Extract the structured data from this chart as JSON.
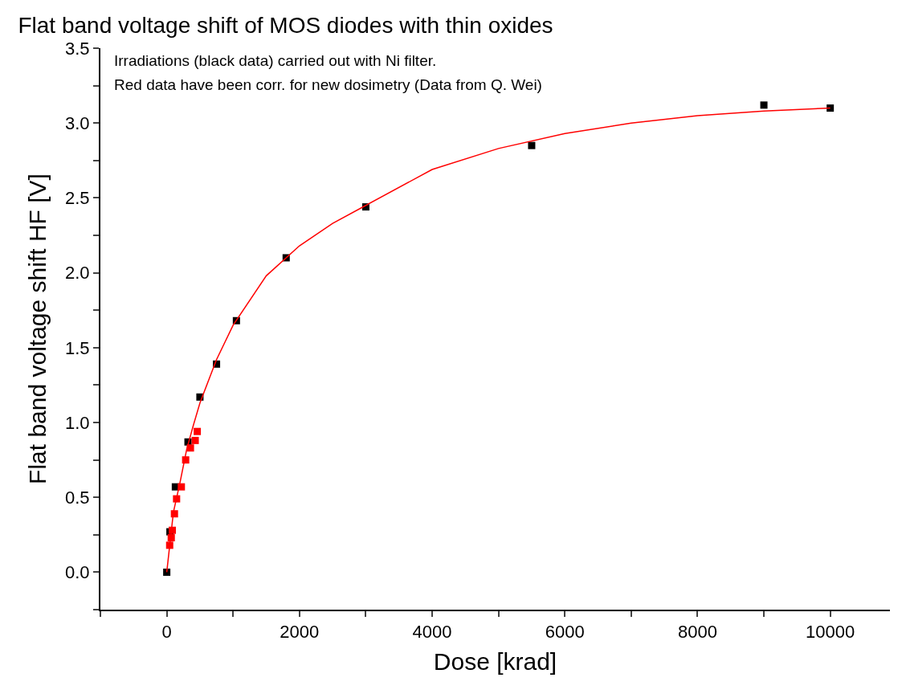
{
  "chart_data": {
    "type": "scatter",
    "title": "Flat band voltage shift of MOS diodes with thin oxides",
    "xlabel": "Dose [krad]",
    "ylabel": "Flat band voltage shift HF [V]",
    "annotations": [
      "Irradiations (black data) carried out with Ni filter.",
      "Red data have been corr. for new dosimetry (Data from Q. Wei)"
    ],
    "series": [
      {
        "color": "#000000",
        "x": [
          0,
          48,
          130,
          320,
          500,
          750,
          1050,
          1800,
          3000,
          5500,
          9000,
          10000
        ],
        "values": [
          0.0,
          0.27,
          0.57,
          0.87,
          1.17,
          1.39,
          1.68,
          2.1,
          2.44,
          2.85,
          3.12,
          3.1
        ]
      },
      {
        "color": "#ff0000",
        "x": [
          44,
          68,
          84,
          116,
          148,
          220,
          285,
          357,
          429,
          460
        ],
        "values": [
          0.18,
          0.23,
          0.28,
          0.39,
          0.49,
          0.57,
          0.75,
          0.83,
          0.88,
          0.94
        ]
      },
      {
        "type": "line",
        "color": "#ff0000",
        "line_style": "solid",
        "marker": "none",
        "x": [
          0,
          50,
          100,
          200,
          300,
          400,
          500,
          750,
          1000,
          1500,
          2000,
          2500,
          3000,
          4000,
          5000,
          6000,
          7000,
          8000,
          9000,
          10000
        ],
        "values": [
          0.0,
          0.2,
          0.4,
          0.6,
          0.82,
          0.98,
          1.13,
          1.42,
          1.65,
          1.98,
          2.18,
          2.33,
          2.45,
          2.69,
          2.83,
          2.93,
          3.0,
          3.05,
          3.08,
          3.1
        ]
      }
    ],
    "xlim": [
      -1000,
      10900
    ],
    "xticks": [
      {
        "value": -1000,
        "label": null
      },
      0,
      {
        "value": 1000,
        "label": null
      },
      2000,
      {
        "value": 3000,
        "label": null
      },
      4000,
      {
        "value": 5000,
        "label": null
      },
      6000,
      {
        "value": 7000,
        "label": null
      },
      8000,
      {
        "value": 9000,
        "label": null
      },
      10000
    ],
    "ylim": [
      -0.25,
      3.5
    ],
    "yticks": [
      {
        "value": -0.25,
        "label": null
      },
      {
        "value": 0,
        "label": "0.0"
      },
      {
        "value": 0.25,
        "label": null
      },
      {
        "value": 0.5,
        "label": "0.5"
      },
      {
        "value": 0.75,
        "label": null
      },
      {
        "value": 1,
        "label": "1.0"
      },
      {
        "value": 1.25,
        "label": null
      },
      {
        "value": 1.5,
        "label": "1.5"
      },
      {
        "value": 1.75,
        "label": null
      },
      {
        "value": 2,
        "label": "2.0"
      },
      {
        "value": 2.25,
        "label": null
      },
      {
        "value": 2.5,
        "label": "2.5"
      },
      {
        "value": 2.75,
        "label": null
      },
      {
        "value": 3,
        "label": "3.0"
      },
      {
        "value": 3.25,
        "label": null
      },
      {
        "value": 3.5,
        "label": "3.5"
      }
    ],
    "marker": "square"
  }
}
